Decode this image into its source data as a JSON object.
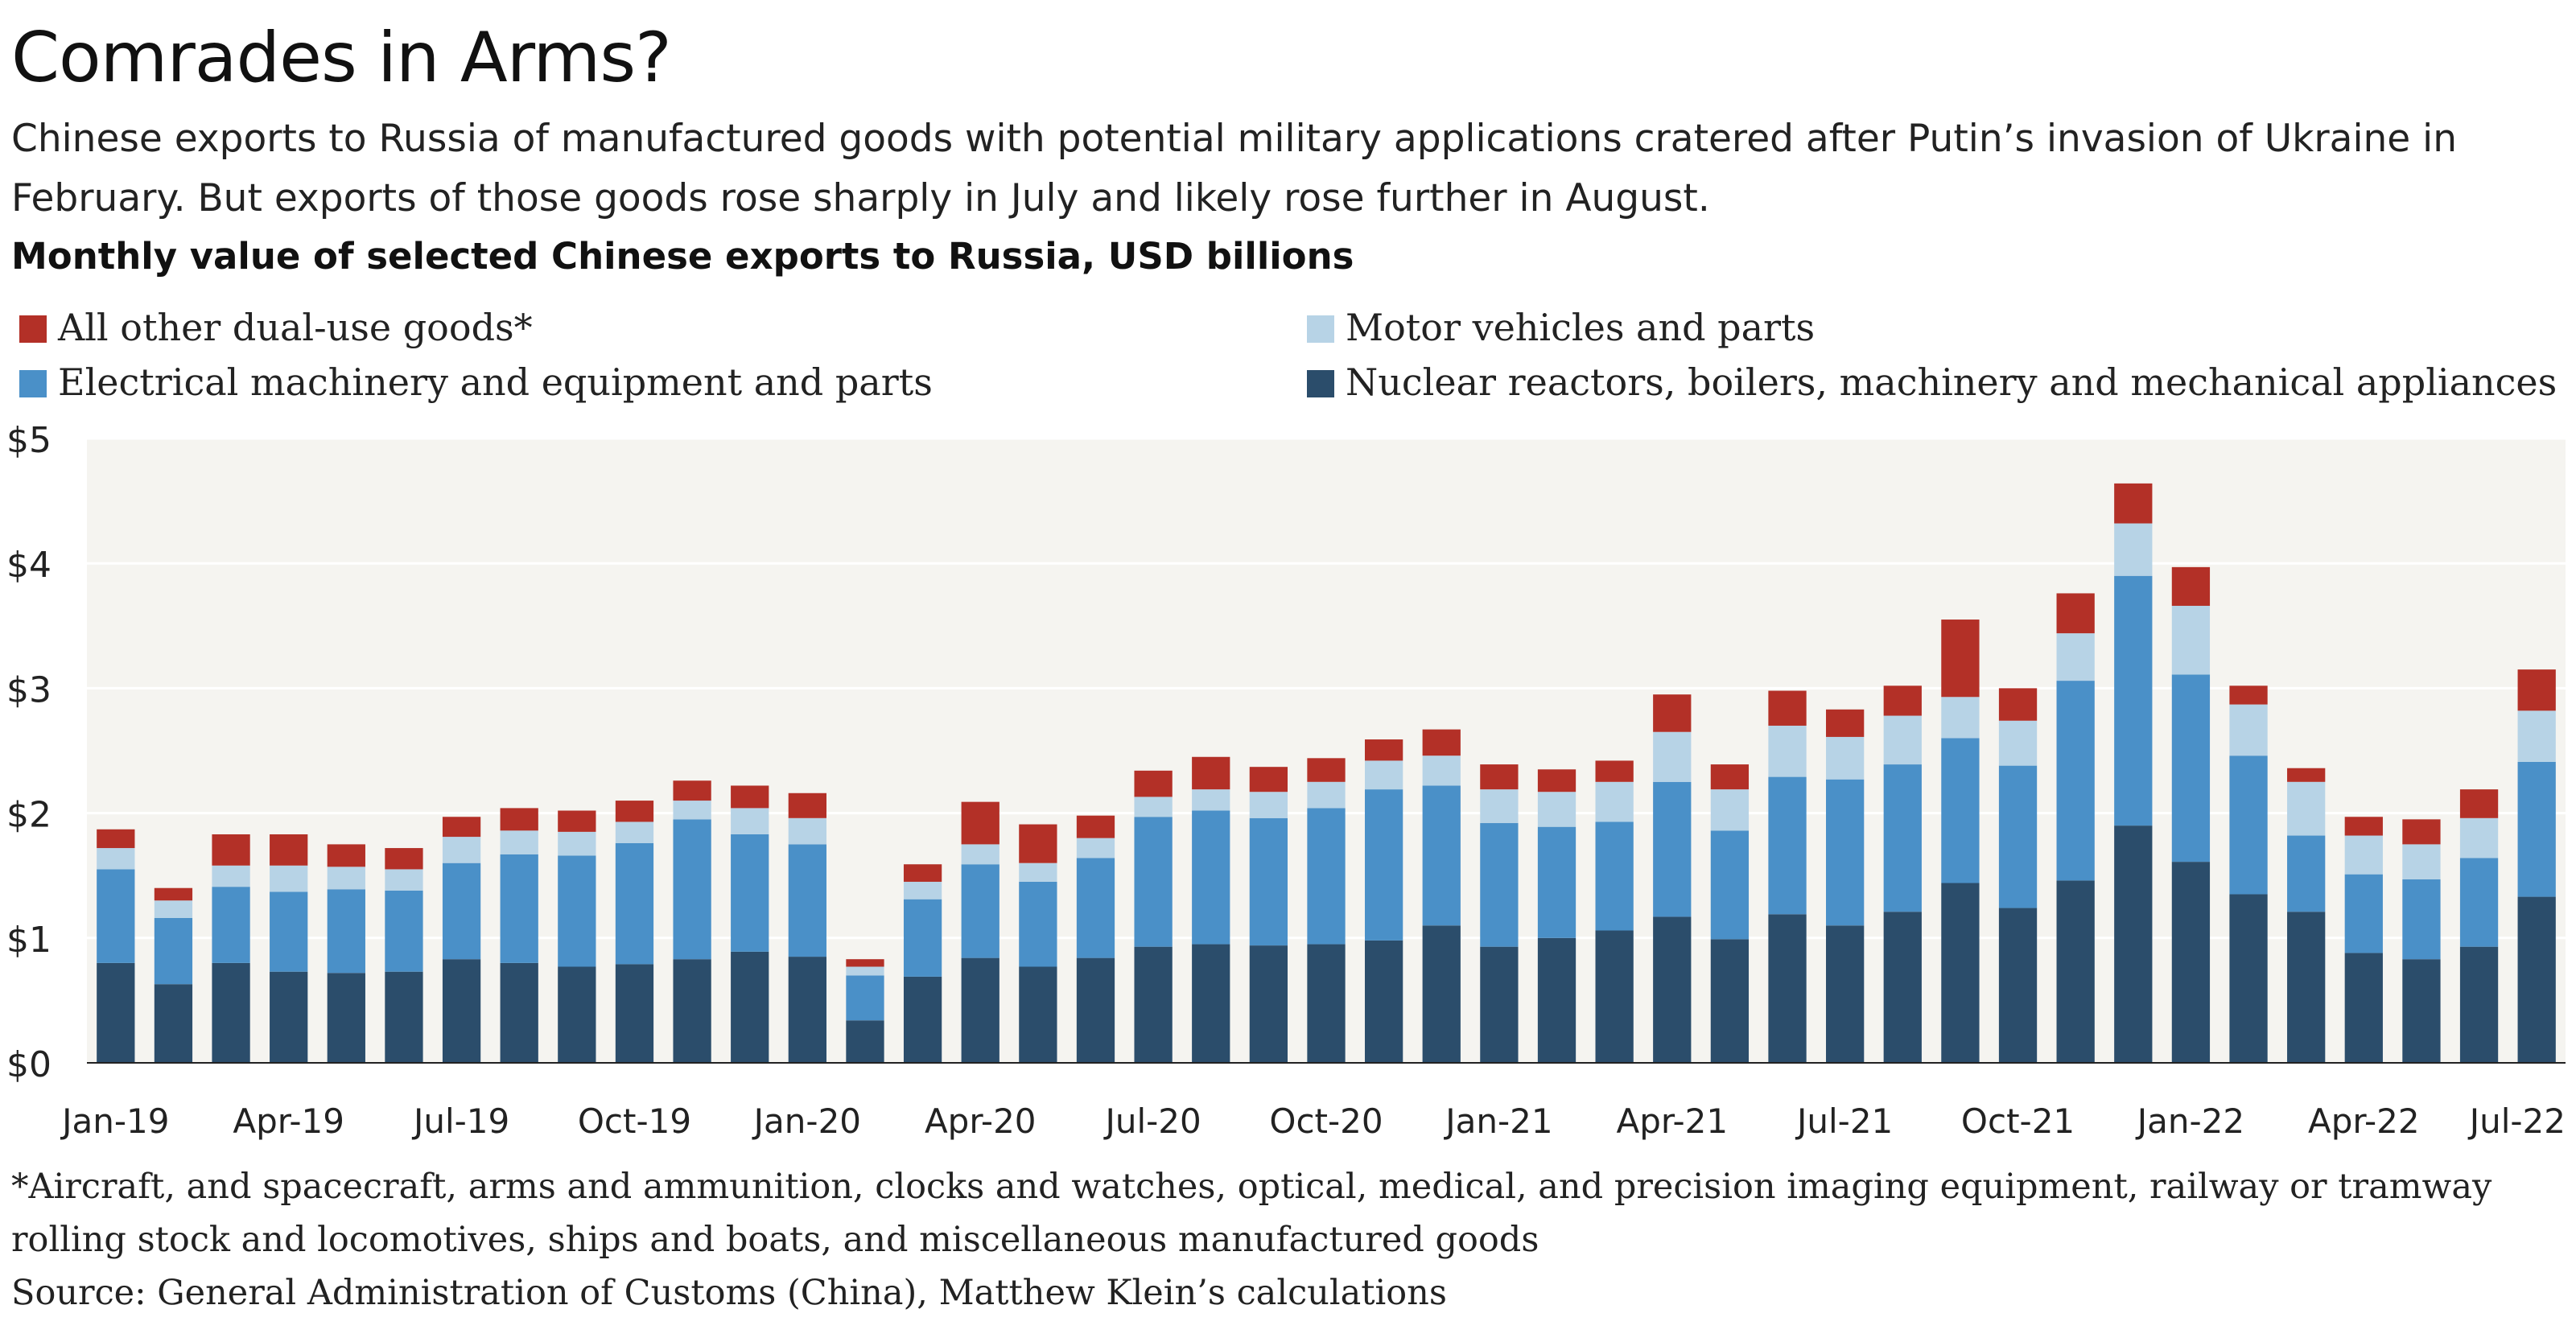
{
  "header": {
    "title": "Comrades in Arms?",
    "subtitle": "Chinese exports to Russia of manufactured goods with potential military applications cratered after Putin’s invasion of Ukraine in February. But exports of those goods rose sharply in July and likely rose further in August.",
    "chart_heading": "Monthly value of selected Chinese exports to Russia, USD billions"
  },
  "footer": {
    "note": "*Aircraft, and spacecraft, arms and ammunition, clocks and watches, optical, medical, and precision imaging equipment, railway or tramway rolling stock and locomotives, ships and boats, and miscellaneous manufactured goods",
    "source": "Source: General Administration of Customs (China), Matthew Klein’s calculations"
  },
  "colors": {
    "nuclear": "#2b4d6b",
    "electrical": "#4a90c8",
    "motor": "#b7d3e6",
    "other": "#b33027",
    "plot_bg": "#f5f4f0",
    "gridline": "#ffffff"
  },
  "chart_data": {
    "type": "bar",
    "stacked": true,
    "title": "Monthly value of selected Chinese exports to Russia, USD billions",
    "ylim": [
      0,
      5
    ],
    "y_ticks": [
      0,
      1,
      2,
      3,
      4,
      5
    ],
    "y_tick_labels": [
      "$0",
      "$1",
      "$2",
      "$3",
      "$4",
      "$5"
    ],
    "x_tick_labels": [
      "Jan-19",
      "Apr-19",
      "Jul-19",
      "Oct-19",
      "Jan-20",
      "Apr-20",
      "Jul-20",
      "Oct-20",
      "Jan-21",
      "Apr-21",
      "Jul-21",
      "Oct-21",
      "Jan-22",
      "Apr-22",
      "Jul-22"
    ],
    "label_every": 3,
    "categories": [
      "Jan-19",
      "Feb-19",
      "Mar-19",
      "Apr-19",
      "May-19",
      "Jun-19",
      "Jul-19",
      "Aug-19",
      "Sep-19",
      "Oct-19",
      "Nov-19",
      "Dec-19",
      "Jan-20",
      "Feb-20",
      "Mar-20",
      "Apr-20",
      "May-20",
      "Jun-20",
      "Jul-20",
      "Aug-20",
      "Sep-20",
      "Oct-20",
      "Nov-20",
      "Dec-20",
      "Jan-21",
      "Feb-21",
      "Mar-21",
      "Apr-21",
      "May-21",
      "Jun-21",
      "Jul-21",
      "Aug-21",
      "Sep-21",
      "Oct-21",
      "Nov-21",
      "Dec-21",
      "Jan-22",
      "Feb-22",
      "Mar-22",
      "Apr-22",
      "May-22",
      "Jun-22",
      "Jul-22"
    ],
    "series": [
      {
        "name": "Nuclear reactors, boilers, machinery and mechanical appliances",
        "color_key": "nuclear",
        "values": [
          0.8,
          0.63,
          0.8,
          0.73,
          0.72,
          0.73,
          0.83,
          0.8,
          0.77,
          0.79,
          0.83,
          0.89,
          0.85,
          0.34,
          0.69,
          0.84,
          0.77,
          0.84,
          0.93,
          0.95,
          0.94,
          0.95,
          0.98,
          1.1,
          0.93,
          1.0,
          1.06,
          1.17,
          0.99,
          1.19,
          1.1,
          1.21,
          1.44,
          1.24,
          1.46,
          1.9,
          1.61,
          1.35,
          1.21,
          0.88,
          0.83,
          0.93,
          1.33
        ]
      },
      {
        "name": "Electrical machinery and equipment and parts",
        "color_key": "electrical",
        "values": [
          0.75,
          0.53,
          0.61,
          0.64,
          0.67,
          0.65,
          0.77,
          0.87,
          0.89,
          0.97,
          1.12,
          0.94,
          0.9,
          0.36,
          0.62,
          0.75,
          0.68,
          0.8,
          1.04,
          1.07,
          1.02,
          1.09,
          1.21,
          1.12,
          0.99,
          0.89,
          0.87,
          1.08,
          0.87,
          1.1,
          1.17,
          1.18,
          1.16,
          1.14,
          1.6,
          2.0,
          1.5,
          1.11,
          0.61,
          0.63,
          0.64,
          0.71,
          1.08
        ]
      },
      {
        "name": "Motor vehicles and parts",
        "color_key": "motor",
        "values": [
          0.17,
          0.14,
          0.17,
          0.21,
          0.18,
          0.17,
          0.21,
          0.19,
          0.19,
          0.17,
          0.15,
          0.21,
          0.21,
          0.07,
          0.14,
          0.16,
          0.15,
          0.16,
          0.16,
          0.17,
          0.21,
          0.21,
          0.23,
          0.24,
          0.27,
          0.28,
          0.32,
          0.4,
          0.33,
          0.41,
          0.34,
          0.39,
          0.33,
          0.36,
          0.38,
          0.42,
          0.55,
          0.41,
          0.43,
          0.31,
          0.28,
          0.32,
          0.41
        ]
      },
      {
        "name": "All other dual-use goods*",
        "color_key": "other",
        "values": [
          0.15,
          0.1,
          0.25,
          0.25,
          0.18,
          0.17,
          0.16,
          0.18,
          0.17,
          0.17,
          0.16,
          0.18,
          0.2,
          0.06,
          0.14,
          0.34,
          0.31,
          0.18,
          0.21,
          0.26,
          0.2,
          0.19,
          0.17,
          0.21,
          0.2,
          0.18,
          0.17,
          0.3,
          0.2,
          0.28,
          0.22,
          0.24,
          0.62,
          0.26,
          0.32,
          0.32,
          0.31,
          0.15,
          0.11,
          0.15,
          0.2,
          0.23,
          0.33
        ]
      }
    ],
    "legend": {
      "left": [
        {
          "label": "All other dual-use goods*",
          "color_key": "other"
        },
        {
          "label": "Electrical machinery and equipment and parts",
          "color_key": "electrical"
        }
      ],
      "right": [
        {
          "label": "Motor vehicles and parts",
          "color_key": "motor"
        },
        {
          "label": "Nuclear reactors, boilers, machinery and mechanical appliances",
          "color_key": "nuclear"
        }
      ]
    }
  }
}
